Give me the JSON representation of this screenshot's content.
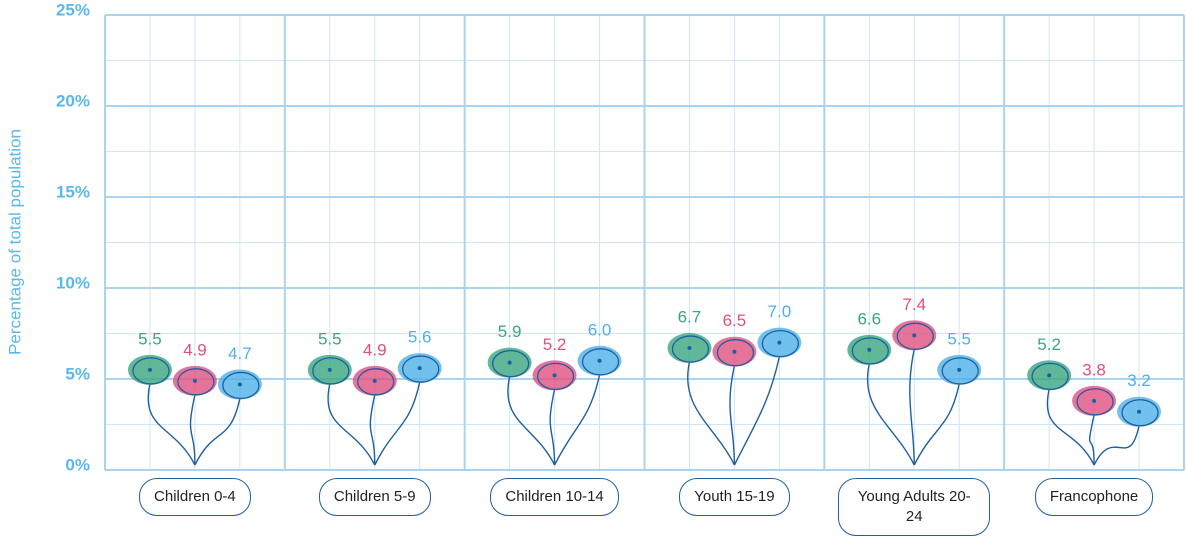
{
  "chart_data": {
    "type": "balloon",
    "y_label": "Percentage of total population",
    "categories": [
      "Children 0-4",
      "Children 5-9",
      "Children 10-14",
      "Youth 15-19",
      "Young Adults 20-24",
      "Francophone"
    ],
    "series": [
      {
        "color": "#3aa67f",
        "values": [
          5.5,
          5.5,
          5.9,
          6.7,
          6.6,
          5.2
        ]
      },
      {
        "color": "#e0507f",
        "values": [
          4.9,
          4.9,
          5.2,
          6.5,
          7.4,
          3.8
        ]
      },
      {
        "color": "#4fb0e8",
        "values": [
          4.7,
          5.6,
          6.0,
          7.0,
          5.5,
          3.2
        ],
        "value_labels": [
          "4.7",
          "5.6",
          "6.0",
          "7.0",
          "5.5",
          "3.2"
        ]
      }
    ],
    "ylim": [
      0,
      25
    ],
    "yticks": [
      {
        "value": 0,
        "label": "0%"
      },
      {
        "value": 5,
        "label": "5%"
      },
      {
        "value": 10,
        "label": "10%"
      },
      {
        "value": 15,
        "label": "15%"
      },
      {
        "value": 20,
        "label": "20%"
      },
      {
        "value": 25,
        "label": "25%"
      }
    ],
    "grid": true
  }
}
